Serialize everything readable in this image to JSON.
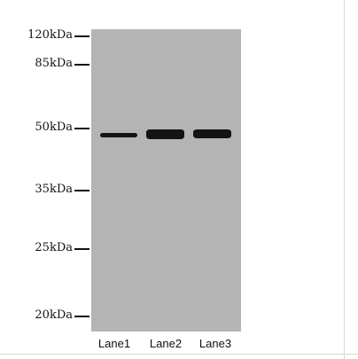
{
  "markers": [
    {
      "label": "120kDa"
    },
    {
      "label": "85kDa"
    },
    {
      "label": "50kDa"
    },
    {
      "label": "35kDa"
    },
    {
      "label": "25kDa"
    },
    {
      "label": "20kDa"
    }
  ],
  "lanes": [
    {
      "label": "Lane1"
    },
    {
      "label": "Lane2"
    },
    {
      "label": "Lane3"
    }
  ],
  "colors": {
    "membrane": "#b4b4b4",
    "band": "#141414"
  }
}
